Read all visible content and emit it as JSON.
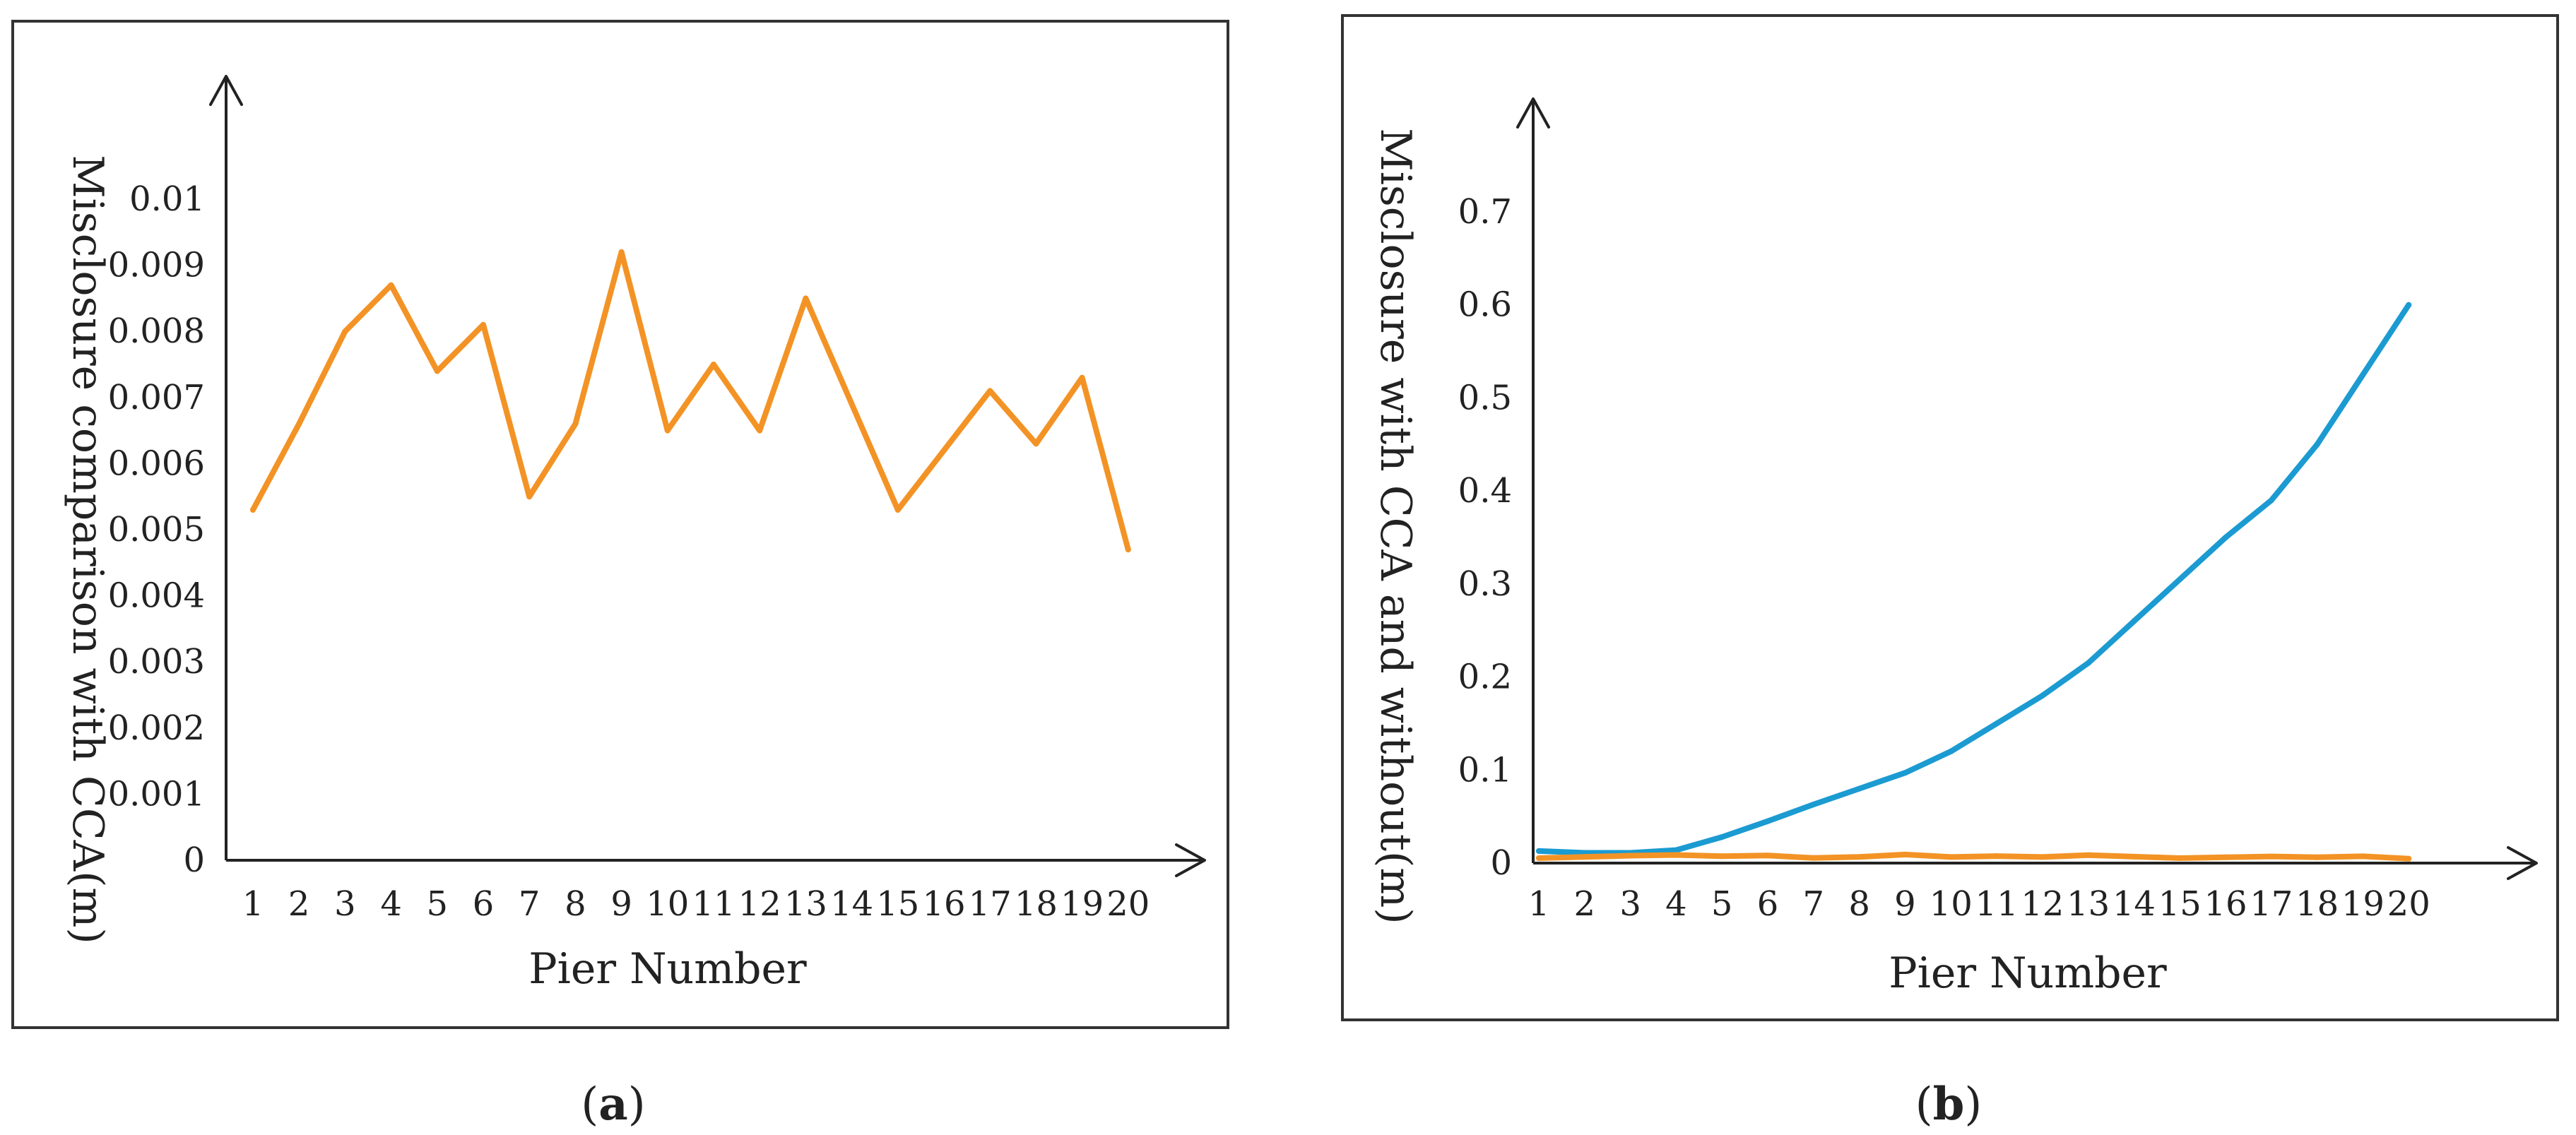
{
  "chart_data": [
    {
      "panel_label": "a",
      "type": "line",
      "xlabel": "Pier Number",
      "ylabel": "Misclosure comparison with CCA(m)",
      "x": [
        1,
        2,
        3,
        4,
        5,
        6,
        7,
        8,
        9,
        10,
        11,
        12,
        13,
        14,
        15,
        16,
        17,
        18,
        19,
        20
      ],
      "x_tick_labels": [
        "1",
        "2",
        "3",
        "4",
        "5",
        "6",
        "7",
        "8",
        "9",
        "10",
        "11",
        "12",
        "13",
        "14",
        "15",
        "16",
        "17",
        "18",
        "19",
        "20"
      ],
      "y_tick_values": [
        0,
        0.001,
        0.002,
        0.003,
        0.004,
        0.005,
        0.006,
        0.007,
        0.008,
        0.009,
        0.01
      ],
      "y_tick_labels": [
        "0",
        "0.001",
        "0.002",
        "0.003",
        "0.004",
        "0.005",
        "0.006",
        "0.007",
        "0.008",
        "0.009",
        "0.01"
      ],
      "ylim": [
        0,
        0.01
      ],
      "grid": false,
      "series": [
        {
          "color": "#F39325",
          "values": [
            0.0053,
            0.0066,
            0.008,
            0.0087,
            0.0074,
            0.0081,
            0.0055,
            0.0066,
            0.0092,
            0.0065,
            0.0075,
            0.0065,
            0.0085,
            0.0069,
            0.0053,
            0.0062,
            0.0071,
            0.0063,
            0.0073,
            0.0047
          ]
        }
      ]
    },
    {
      "panel_label": "b",
      "type": "line",
      "xlabel": "Pier Number",
      "ylabel": "Misclosure with CCA and without(m)",
      "x": [
        1,
        2,
        3,
        4,
        5,
        6,
        7,
        8,
        9,
        10,
        11,
        12,
        13,
        14,
        15,
        16,
        17,
        18,
        19,
        20
      ],
      "x_tick_labels": [
        "1",
        "2",
        "3",
        "4",
        "5",
        "6",
        "7",
        "8",
        "9",
        "10",
        "11",
        "12",
        "13",
        "14",
        "15",
        "16",
        "17",
        "18",
        "19",
        "20"
      ],
      "y_tick_values": [
        0,
        0.1,
        0.2,
        0.3,
        0.4,
        0.5,
        0.6,
        0.7
      ],
      "y_tick_labels": [
        "0",
        "0.1",
        "0.2",
        "0.3",
        "0.4",
        "0.5",
        "0.6",
        "0.7"
      ],
      "ylim": [
        0,
        0.7
      ],
      "grid": false,
      "series": [
        {
          "color": "#1B9BD1",
          "values": [
            0.013,
            0.011,
            0.011,
            0.014,
            0.028,
            0.045,
            0.063,
            0.08,
            0.097,
            0.12,
            0.15,
            0.18,
            0.215,
            0.26,
            0.305,
            0.35,
            0.39,
            0.45,
            0.525,
            0.6
          ]
        },
        {
          "color": "#F39325",
          "values": [
            0.0053,
            0.0066,
            0.008,
            0.0087,
            0.0074,
            0.0081,
            0.0055,
            0.0066,
            0.0092,
            0.0065,
            0.0075,
            0.0065,
            0.0085,
            0.0069,
            0.0053,
            0.0062,
            0.0071,
            0.0063,
            0.0073,
            0.0047
          ]
        }
      ]
    }
  ],
  "captions": {
    "a": "a",
    "b": "b"
  }
}
